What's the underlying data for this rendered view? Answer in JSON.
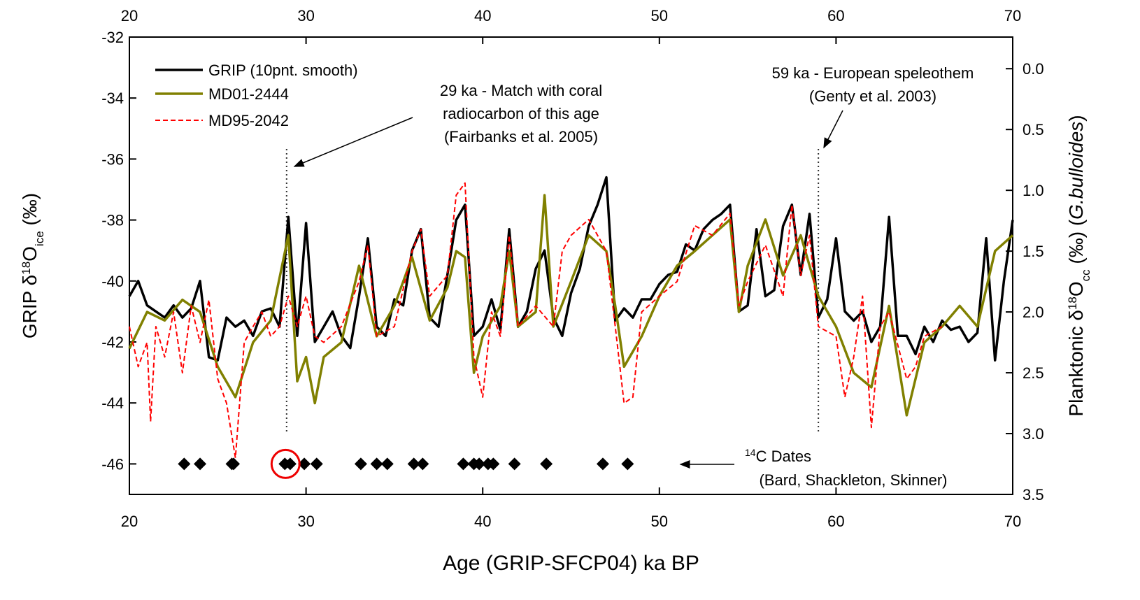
{
  "chart_data": {
    "type": "line",
    "x_label": "Age (GRIP-SFCP04) ka BP",
    "y_label": [
      "GRIP δ",
      "18",
      "O",
      "ice",
      " (‰)"
    ],
    "y2_label": [
      "Planktonic δ",
      "18",
      "O",
      "cc",
      " (‰) (",
      "G.bulloides",
      ")"
    ],
    "xlim": [
      20,
      70
    ],
    "xticks": [
      20,
      30,
      40,
      50,
      60,
      70
    ],
    "ylim": [
      -47,
      -32
    ],
    "yticks": [
      -32,
      -34,
      -36,
      -38,
      -40,
      -42,
      -44,
      -46
    ],
    "y2lim": [
      3.5,
      -0.26
    ],
    "y2ticks": [
      {
        "value": 0,
        "label": "0.0"
      },
      0.5,
      {
        "value": 1,
        "label": "1.0"
      },
      1.5,
      {
        "value": 2,
        "label": "2.0"
      },
      2.5,
      {
        "value": 3,
        "label": "3.0"
      },
      3.5
    ],
    "legend": "upper left",
    "series": [
      {
        "name": "GRIP (10pnt. smooth)",
        "color": "#000000",
        "style": "solid",
        "axis": "y",
        "x": [
          20,
          20.5,
          21,
          21.5,
          22,
          22.5,
          23,
          23.5,
          24,
          24.5,
          25,
          25.5,
          26,
          26.5,
          27,
          27.5,
          28,
          28.5,
          29,
          29.5,
          30,
          30.5,
          31,
          31.5,
          32,
          32.5,
          33,
          33.5,
          34,
          34.5,
          35,
          35.5,
          36,
          36.5,
          37,
          37.5,
          38,
          38.5,
          39,
          39.5,
          40,
          40.5,
          41,
          41.5,
          42,
          42.5,
          43,
          43.5,
          44,
          44.5,
          45,
          45.5,
          46,
          46.5,
          47,
          47.5,
          48,
          48.5,
          49,
          49.5,
          50,
          50.5,
          51,
          51.5,
          52,
          52.5,
          53,
          53.5,
          54,
          54.5,
          55,
          55.5,
          56,
          56.5,
          57,
          57.5,
          58,
          58.5,
          59,
          59.5,
          60,
          60.5,
          61,
          61.5,
          62,
          62.5,
          63,
          63.5,
          64,
          64.5,
          65,
          65.5,
          66,
          66.5,
          67,
          67.5,
          68,
          68.5,
          69,
          69.5,
          70
        ],
        "values": [
          -40.5,
          -40.0,
          -40.8,
          -41.0,
          -41.2,
          -40.8,
          -41.2,
          -40.9,
          -40.0,
          -42.5,
          -42.6,
          -41.2,
          -41.5,
          -41.3,
          -41.8,
          -41.0,
          -40.9,
          -41.5,
          -37.9,
          -41.8,
          -38.1,
          -42.0,
          -41.5,
          -41.0,
          -41.8,
          -42.2,
          -40.5,
          -38.6,
          -41.5,
          -41.8,
          -40.6,
          -40.8,
          -39.0,
          -38.3,
          -41.2,
          -41.5,
          -39.8,
          -38.0,
          -37.5,
          -41.8,
          -41.5,
          -40.6,
          -41.6,
          -38.3,
          -41.5,
          -41.0,
          -39.6,
          -39.0,
          -41.2,
          -41.8,
          -40.4,
          -39.6,
          -38.2,
          -37.5,
          -36.6,
          -41.3,
          -40.9,
          -41.2,
          -40.6,
          -40.6,
          -40.1,
          -39.8,
          -39.7,
          -38.8,
          -39.0,
          -38.3,
          -38.0,
          -37.8,
          -37.5,
          -41.0,
          -40.8,
          -38.3,
          -40.5,
          -40.3,
          -38.2,
          -37.5,
          -39.8,
          -37.8,
          -41.2,
          -40.6,
          -38.6,
          -41.0,
          -41.3,
          -41.0,
          -42.0,
          -41.5,
          -37.9,
          -41.8,
          -41.8,
          -42.4,
          -41.5,
          -42.0,
          -41.3,
          -41.6,
          -41.5,
          -42.0,
          -41.7,
          -38.6,
          -42.6,
          -40.0,
          -38.0
        ]
      },
      {
        "name": "MD01-2444",
        "color": "#808000",
        "style": "solid",
        "axis": "y2",
        "x": [
          20,
          21,
          22,
          23,
          24,
          25,
          26,
          27,
          28,
          29,
          29.5,
          30,
          30.5,
          31,
          32,
          33,
          34,
          35,
          36,
          37,
          38,
          38.5,
          39,
          39.5,
          40,
          41,
          41.5,
          42,
          43,
          43.5,
          44,
          45,
          46,
          47,
          47.5,
          48,
          49,
          50,
          51,
          52,
          53,
          54,
          54.5,
          55,
          56,
          57,
          58,
          59,
          60,
          61,
          62,
          63,
          64,
          65,
          66,
          67,
          68,
          69,
          70
        ],
        "values": [
          2.3,
          2.0,
          2.07,
          1.9,
          2.0,
          2.45,
          2.7,
          2.25,
          2.07,
          1.37,
          2.57,
          2.37,
          2.75,
          2.37,
          2.25,
          1.62,
          2.2,
          1.95,
          1.55,
          2.07,
          1.8,
          1.5,
          1.55,
          2.5,
          2.2,
          1.95,
          1.5,
          2.12,
          2.0,
          1.04,
          2.12,
          1.75,
          1.37,
          1.5,
          1.95,
          2.45,
          2.2,
          1.87,
          1.62,
          1.5,
          1.37,
          1.24,
          2.0,
          1.62,
          1.24,
          1.7,
          1.37,
          1.87,
          2.12,
          2.5,
          2.62,
          1.95,
          2.85,
          2.25,
          2.12,
          1.95,
          2.12,
          1.5,
          1.37
        ]
      },
      {
        "name": "MD95-2042",
        "color": "#ff0000",
        "style": "dashed",
        "axis": "y2",
        "x": [
          20,
          20.5,
          21,
          21.2,
          21.5,
          22,
          22.5,
          23,
          23.5,
          24,
          24.5,
          25,
          25.5,
          26,
          26.5,
          27,
          27.5,
          28,
          28.5,
          29,
          29.5,
          30,
          30.5,
          31,
          32,
          33,
          33.5,
          34,
          35,
          36,
          36.5,
          37,
          38,
          38.5,
          39,
          39.5,
          40,
          40.5,
          41,
          41.5,
          42,
          43,
          44,
          44.5,
          45,
          46,
          47,
          47.5,
          48,
          48.5,
          49,
          50,
          51,
          52,
          53,
          54,
          54.5,
          55,
          56,
          57,
          57.5,
          58,
          58.5,
          59,
          60,
          60.5,
          61,
          61.5,
          62,
          62.5,
          63,
          64,
          64.5,
          65,
          66
        ],
        "values": [
          2.12,
          2.45,
          2.25,
          2.9,
          2.12,
          2.37,
          2.0,
          2.5,
          1.95,
          2.25,
          1.9,
          2.55,
          2.75,
          3.2,
          2.25,
          2.12,
          2.0,
          2.2,
          2.12,
          1.87,
          2.12,
          1.87,
          2.2,
          2.25,
          2.12,
          1.75,
          1.45,
          2.2,
          2.12,
          1.5,
          1.32,
          1.87,
          1.7,
          1.04,
          0.94,
          2.37,
          2.7,
          2.0,
          2.2,
          1.37,
          2.12,
          1.95,
          2.12,
          1.5,
          1.37,
          1.24,
          1.5,
          2.12,
          2.75,
          2.7,
          2.0,
          1.87,
          1.75,
          1.29,
          1.37,
          1.19,
          1.95,
          1.75,
          1.45,
          1.87,
          1.12,
          1.7,
          1.37,
          2.12,
          2.2,
          2.7,
          2.37,
          1.87,
          2.95,
          2.12,
          2.0,
          2.55,
          2.45,
          2.2,
          2.12
        ]
      }
    ],
    "dates": {
      "x": [
        23.1,
        24.0,
        25.8,
        25.9,
        28.8,
        29.1,
        29.9,
        30.6,
        33.1,
        34.0,
        34.6,
        36.1,
        36.6,
        38.9,
        39.5,
        39.8,
        40.3,
        40.6,
        41.8,
        43.6,
        46.8,
        48.2
      ],
      "values": [
        -46,
        -46,
        -46,
        -46,
        -46,
        -46,
        -46,
        -46,
        -46,
        -46,
        -46,
        -46,
        -46,
        -46,
        -46,
        -46,
        -46,
        -46,
        -46,
        -46,
        -46,
        -46
      ]
    },
    "reference_lines": [
      28.9,
      59.0
    ],
    "annotations": [
      {
        "lines": [
          "29 ka - Match with coral",
          "radiocarbon of this age",
          "(Fairbanks et al. 2005)"
        ]
      },
      {
        "lines": [
          "59 ka - European speleothem",
          "(Genty et al. 2003)"
        ]
      },
      {
        "lines": [
          [
            "14",
            "C Dates"
          ],
          "(Bard, Shackleton, Skinner)"
        ]
      }
    ]
  }
}
